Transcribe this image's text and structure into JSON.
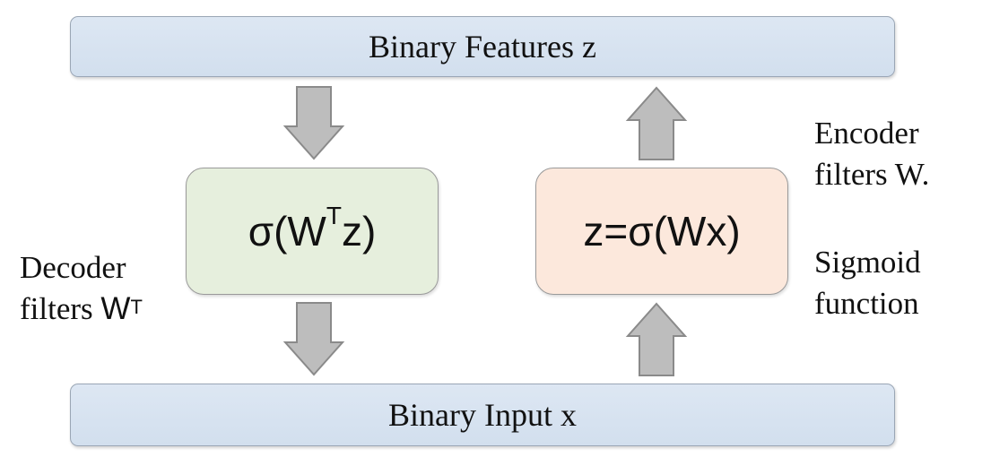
{
  "top_bar": {
    "label": "Binary Features z"
  },
  "bottom_bar": {
    "label": "Binary Input x"
  },
  "decoder": {
    "formula_prefix": "σ(W",
    "formula_sup": "T",
    "formula_suffix": "z)",
    "label_line1": "Decoder",
    "label_line2_text": "filters ",
    "label_line2_w": "W",
    "label_line2_sup": "T"
  },
  "encoder": {
    "formula": "z=σ(Wx)",
    "label_line1": "Encoder",
    "label_line2": "filters W."
  },
  "sigmoid": {
    "label_line1": "Sigmoid",
    "label_line2": "function"
  },
  "colors": {
    "bar_fill": "#d2dfee",
    "decoder_fill": "#e6efdd",
    "encoder_fill": "#fce8dc",
    "arrow_fill": "#bdbdbd"
  },
  "icons": [
    "arrow-down-icon",
    "arrow-up-icon"
  ]
}
